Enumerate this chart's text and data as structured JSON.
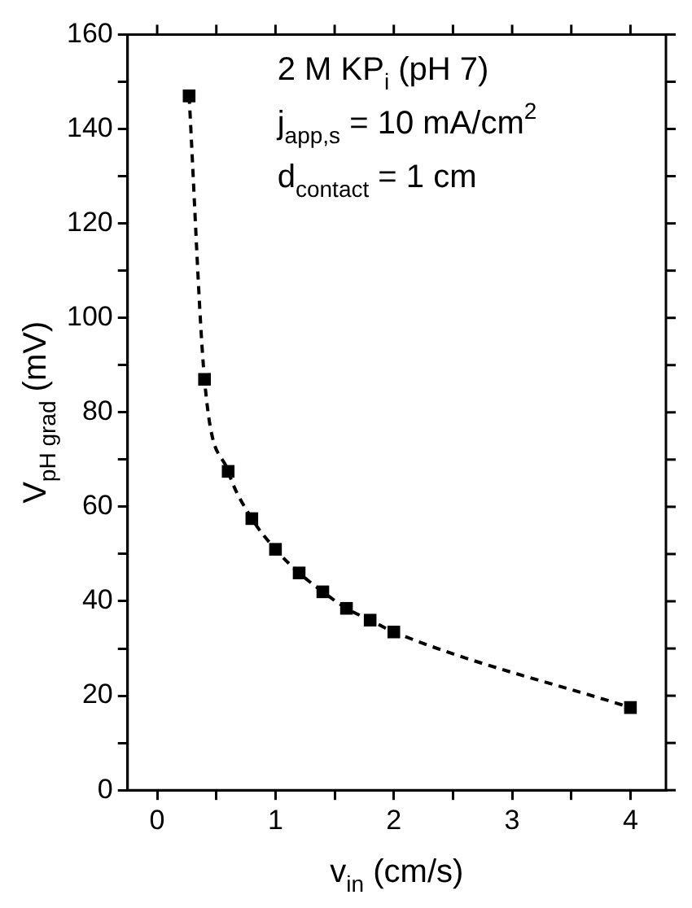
{
  "chart_data": {
    "type": "line",
    "xlabel": "v$_{in}$ (cm/s)",
    "ylabel": "V$_{pH grad}$ (mV)",
    "annotations": [
      "2 M KP$_{i}$ (pH 7)",
      "j$_{app,s}$ = 10 mA/cm$^{2}$",
      "d$_{contact}$ = 1 cm"
    ],
    "x": [
      0.27,
      0.4,
      0.6,
      0.8,
      1.0,
      1.2,
      1.4,
      1.6,
      1.8,
      2.0,
      4.0
    ],
    "series": [
      {
        "color": "#000000",
        "values": [
          147,
          87,
          67.5,
          57.5,
          51,
          46,
          42,
          38.5,
          36,
          33.5,
          17.5
        ]
      }
    ],
    "xlim": [
      -0.25,
      4.3
    ],
    "xticks": [
      0,
      {
        "value": 0.5,
        "label": null
      },
      1,
      {
        "value": 1.5,
        "label": null
      },
      2,
      {
        "value": 2.5,
        "label": null
      },
      3,
      {
        "value": 3.5,
        "label": null
      },
      4
    ],
    "ylim": [
      0,
      160
    ],
    "yticks": [
      0,
      {
        "value": 10,
        "label": null
      },
      20,
      {
        "value": 30,
        "label": null
      },
      40,
      {
        "value": 50,
        "label": null
      },
      60,
      {
        "value": 70,
        "label": null
      },
      80,
      {
        "value": 90,
        "label": null
      },
      100,
      {
        "value": 110,
        "label": null
      },
      120,
      {
        "value": 130,
        "label": null
      },
      140,
      {
        "value": 150,
        "label": null
      },
      160
    ],
    "grid": false,
    "legend": false,
    "marker": "square",
    "line_style": "dashed"
  }
}
